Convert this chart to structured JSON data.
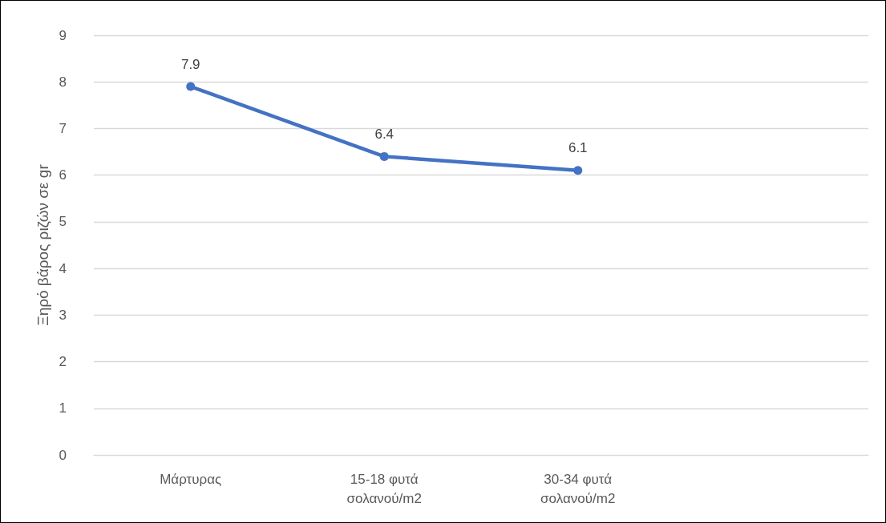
{
  "chart_data": {
    "type": "line",
    "ylabel": "Ξηρό βάρος ριζών σε gr",
    "categories": [
      "Μάρτυρας",
      "15-18 φυτά σολανού/m2",
      "30-34 φυτά σολανού/m2",
      null
    ],
    "series": [
      {
        "color": "#4472c4",
        "values": [
          7.9,
          6.4,
          6.1,
          null
        ]
      }
    ],
    "ylim": [
      0,
      9
    ],
    "yticks": [
      0,
      1,
      2,
      3,
      4,
      5,
      6,
      7,
      8,
      9
    ],
    "grid": "y",
    "marker": "circle",
    "line_style": "solid",
    "data_labels": true
  }
}
